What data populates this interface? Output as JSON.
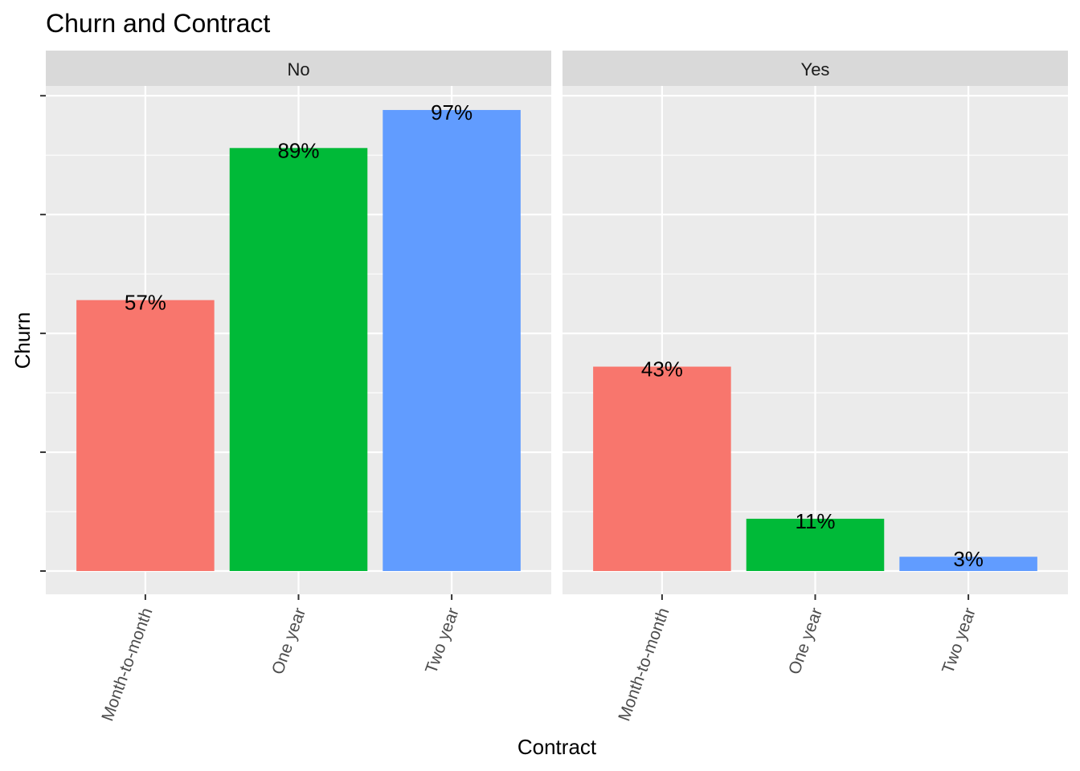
{
  "chart_data": {
    "type": "bar",
    "title": "Churn and Contract",
    "xlabel": "Contract",
    "ylabel": "Churn",
    "ylim": [
      0,
      100
    ],
    "categories": [
      "Month-to-month",
      "One year",
      "Two year"
    ],
    "category_colors": [
      "#F8766D",
      "#00BA38",
      "#619CFF"
    ],
    "panel_background": "#EBEBEB",
    "strip_background": "#D9D9D9",
    "grid": true,
    "legend": "none",
    "facets": [
      {
        "label": "No",
        "values": [
          57,
          89,
          97
        ],
        "value_labels": [
          "57%",
          "89%",
          "97%"
        ]
      },
      {
        "label": "Yes",
        "values": [
          43,
          11,
          3
        ],
        "value_labels": [
          "43%",
          "11%",
          "3%"
        ]
      }
    ]
  }
}
